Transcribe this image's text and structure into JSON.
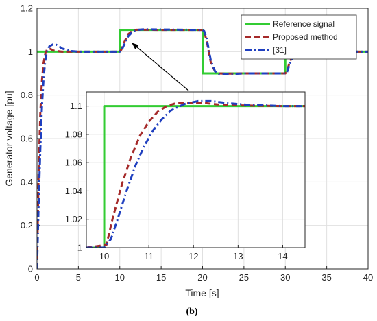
{
  "chart_data": [
    {
      "type": "line",
      "xlabel": "Time [s]",
      "ylabel": "Generator voltage [pu]",
      "xlim": [
        0,
        40
      ],
      "ylim": [
        0,
        1.2
      ],
      "xticks": [
        "0",
        "5",
        "10",
        "15",
        "20",
        "25",
        "30",
        "35",
        "40"
      ],
      "yticks": [
        "0",
        "0.2",
        "0.4",
        "0.6",
        "0.8",
        "1",
        "1.2"
      ],
      "grid": true,
      "legend_position": "top-right",
      "panel_label": "(b)",
      "series": [
        {
          "name": "Reference signal",
          "color": "#33cc33",
          "style": "solid",
          "x": [
            0,
            10,
            10,
            20,
            20,
            30,
            30,
            40
          ],
          "y": [
            1.0,
            1.0,
            1.1,
            1.1,
            0.9,
            0.9,
            1.0,
            1.0
          ]
        },
        {
          "name": "Proposed method",
          "color": "#a52a2a",
          "style": "dashed",
          "x": [
            0,
            0.2,
            0.4,
            0.6,
            0.8,
            1.0,
            1.2,
            1.5,
            2,
            3,
            5,
            10,
            10.2,
            10.5,
            11,
            11.5,
            12,
            13,
            15,
            20,
            20.2,
            20.5,
            21,
            21.5,
            22,
            23,
            25,
            30,
            30.2,
            30.5,
            31,
            31.5,
            32,
            33,
            35,
            40
          ],
          "y": [
            0,
            0.45,
            0.72,
            0.87,
            0.95,
            0.99,
            1.01,
            1.015,
            1.005,
            1.0,
            1.0,
            1.0,
            1.01,
            1.04,
            1.08,
            1.095,
            1.101,
            1.101,
            1.1,
            1.1,
            1.09,
            1.05,
            0.95,
            0.91,
            0.9,
            0.899,
            0.9,
            0.9,
            0.91,
            0.95,
            0.99,
            1.0,
            1.001,
            1.0,
            1.0,
            1.0
          ]
        },
        {
          "name": "[31]",
          "color": "#1f3fbf",
          "style": "dashdot",
          "x": [
            0,
            0.2,
            0.4,
            0.6,
            0.8,
            1.0,
            1.2,
            1.5,
            2,
            2.5,
            3,
            4,
            5,
            10,
            10.2,
            10.5,
            11,
            11.5,
            12,
            13,
            15,
            20,
            20.2,
            20.5,
            21,
            21.5,
            22,
            23,
            25,
            30,
            30.2,
            30.5,
            31,
            31.5,
            32,
            33,
            35,
            40
          ],
          "y": [
            0,
            0.3,
            0.55,
            0.75,
            0.88,
            0.96,
            1.0,
            1.025,
            1.035,
            1.03,
            1.015,
            1.003,
            1.0,
            1.0,
            1.005,
            1.03,
            1.07,
            1.09,
            1.1,
            1.103,
            1.102,
            1.1,
            1.095,
            1.06,
            0.96,
            0.91,
            0.895,
            0.896,
            0.9,
            0.9,
            0.905,
            0.94,
            0.985,
            1.0,
            1.002,
            1.0,
            1.0,
            1.0
          ]
        }
      ]
    },
    {
      "type": "line",
      "inset": true,
      "xlim": [
        9.6,
        14.5
      ],
      "ylim": [
        1.0,
        1.11
      ],
      "xticks": [
        "10",
        "11",
        "12",
        "13",
        "14"
      ],
      "yticks": [
        "1",
        "1.02",
        "1.04",
        "1.06",
        "1.08",
        "1.1"
      ],
      "grid": true,
      "series": [
        {
          "name": "Reference signal",
          "color": "#33cc33",
          "style": "solid",
          "x": [
            9.6,
            10,
            10,
            14.5
          ],
          "y": [
            1.0,
            1.0,
            1.1,
            1.1
          ]
        },
        {
          "name": "Proposed method",
          "color": "#a52a2a",
          "style": "dashed",
          "x": [
            9.6,
            10.05,
            10.2,
            10.4,
            10.6,
            10.8,
            11.0,
            11.2,
            11.4,
            11.6,
            11.8,
            12.0,
            12.3,
            12.6,
            13.0,
            14.0,
            14.5
          ],
          "y": [
            1.0,
            1.002,
            1.022,
            1.045,
            1.064,
            1.079,
            1.089,
            1.096,
            1.1,
            1.102,
            1.1025,
            1.1025,
            1.102,
            1.101,
            1.1005,
            1.1,
            1.1
          ]
        },
        {
          "name": "[31]",
          "color": "#1f3fbf",
          "style": "dashdot",
          "x": [
            9.6,
            10.0,
            10.15,
            10.3,
            10.5,
            10.7,
            10.9,
            11.1,
            11.3,
            11.5,
            11.8,
            12.1,
            12.4,
            12.8,
            13.2,
            14.0,
            14.5
          ],
          "y": [
            1.0,
            1.0,
            1.006,
            1.02,
            1.04,
            1.058,
            1.072,
            1.083,
            1.091,
            1.097,
            1.1015,
            1.1035,
            1.1035,
            1.102,
            1.101,
            1.1,
            1.1
          ]
        }
      ]
    }
  ]
}
